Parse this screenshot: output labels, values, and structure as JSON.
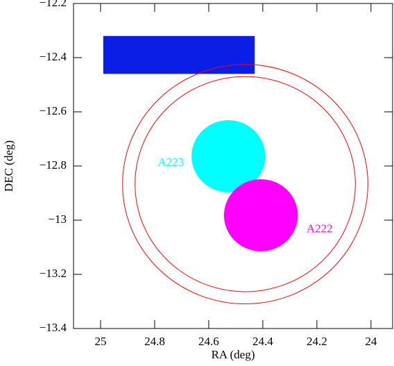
{
  "chart_data": {
    "type": "sky-map",
    "x_label": "RA (deg)",
    "y_label": "DEC (deg)",
    "xlim": [
      25.1,
      23.92
    ],
    "ylim": [
      -13.4,
      -12.2
    ],
    "xticks": [
      25,
      24.8,
      24.6,
      24.4,
      24.2,
      24
    ],
    "yticks": [
      {
        "value": -12.2,
        "label": "−12.2"
      },
      {
        "value": -12.4,
        "label": "−12.4"
      },
      {
        "value": -12.6,
        "label": "−12.6"
      },
      {
        "value": -12.8,
        "label": "−12.8"
      },
      {
        "value": -13,
        "label": "−13"
      },
      {
        "value": -13.2,
        "label": "−13.2"
      },
      {
        "value": -13.4,
        "label": "−13.4"
      }
    ],
    "rects": [
      {
        "ra": [
          24.99,
          24.43
        ],
        "dec": [
          -12.32,
          -12.46
        ],
        "color": "#0a1ee6"
      }
    ],
    "disks": [
      {
        "ra": 24.527,
        "dec": -12.764,
        "radius": 0.133,
        "color": "#00ffff"
      },
      {
        "ra": 24.407,
        "dec": -12.982,
        "radius": 0.133,
        "color": "#ff00ff"
      }
    ],
    "circles": [
      {
        "ra": 24.465,
        "dec": -12.867,
        "radius": 0.442,
        "color": "#ff0000"
      },
      {
        "ra": 24.465,
        "dec": -12.867,
        "radius": 0.397,
        "color": "#ff0000"
      }
    ],
    "annotations": [
      {
        "text": "A223",
        "ra": 24.74,
        "dec": -12.79,
        "color": "#00ffff"
      },
      {
        "text": "A222",
        "ra": 24.19,
        "dec": -13.035,
        "color": "#ff00ff"
      }
    ]
  }
}
